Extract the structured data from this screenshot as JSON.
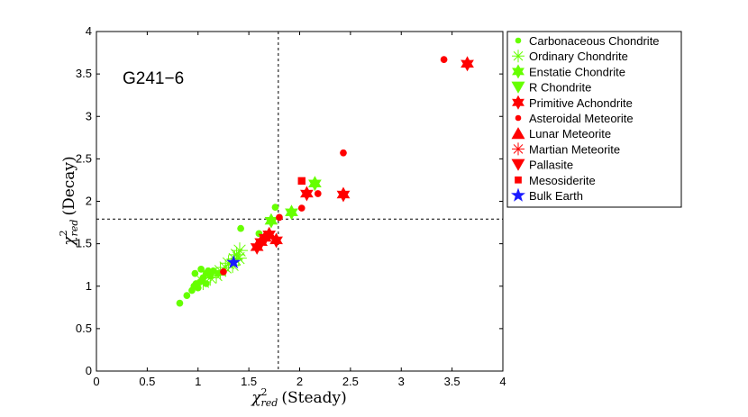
{
  "chart_data": {
    "type": "scatter",
    "title": "G241−6",
    "xlabel": {
      "base": "χ",
      "sup": "2",
      "sub": "red",
      "rest": "(Steady)"
    },
    "ylabel": {
      "base": "χ",
      "sup": "2",
      "sub": "red",
      "rest": "(Decay)"
    },
    "xlim": [
      0,
      4
    ],
    "ylim": [
      0,
      4
    ],
    "x_ticks": [
      0,
      0.5,
      1,
      1.5,
      2,
      2.5,
      3,
      3.5,
      4
    ],
    "y_ticks": [
      0,
      0.5,
      1,
      1.5,
      2,
      2.5,
      3,
      3.5,
      4
    ],
    "x_tick_labels": [
      "0",
      "0.5",
      "1",
      "1.5",
      "2",
      "2.5",
      "3",
      "3.5",
      "4"
    ],
    "y_tick_labels": [
      "0",
      "0.5",
      "1",
      "1.5",
      "2",
      "2.5",
      "3",
      "3.5",
      "4"
    ],
    "reference_lines": {
      "vertical_x": 1.79,
      "horizontal_y": 1.79
    },
    "colors": {
      "green": "#66ff00",
      "red": "#ff0000",
      "blue": "#1a1aff"
    },
    "legend_position": "outside-right",
    "series": [
      {
        "name": "Carbonaceous Chondrite",
        "marker": "dot",
        "color": "#66ff00",
        "points": [
          [
            0.82,
            0.8
          ],
          [
            0.89,
            0.89
          ],
          [
            0.94,
            0.95
          ],
          [
            0.96,
            1.0
          ],
          [
            0.98,
            1.03
          ],
          [
            1.0,
            0.98
          ],
          [
            1.02,
            1.05
          ],
          [
            1.05,
            1.1
          ],
          [
            1.08,
            1.15
          ],
          [
            1.1,
            1.18
          ],
          [
            0.97,
            1.15
          ],
          [
            1.03,
            1.2
          ],
          [
            1.12,
            1.12
          ],
          [
            1.15,
            1.18
          ],
          [
            1.2,
            1.15
          ],
          [
            1.08,
            1.03
          ],
          [
            1.42,
            1.68
          ],
          [
            1.6,
            1.62
          ],
          [
            1.76,
            1.93
          ]
        ]
      },
      {
        "name": "Ordinary Chondrite",
        "marker": "asterisk",
        "color": "#66ff00",
        "points": [
          [
            1.05,
            1.05
          ],
          [
            1.12,
            1.1
          ],
          [
            1.18,
            1.13
          ],
          [
            1.22,
            1.18
          ],
          [
            1.27,
            1.22
          ],
          [
            1.3,
            1.27
          ],
          [
            1.36,
            1.32
          ],
          [
            1.38,
            1.37
          ],
          [
            1.41,
            1.42
          ],
          [
            1.34,
            1.25
          ],
          [
            1.4,
            1.33
          ]
        ]
      },
      {
        "name": "Enstatie Chondrite",
        "marker": "hexagram",
        "color": "#66ff00",
        "points": [
          [
            1.72,
            1.77
          ],
          [
            1.92,
            1.87
          ],
          [
            2.15,
            2.21
          ]
        ]
      },
      {
        "name": "R Chondrite",
        "marker": "triangle-down",
        "color": "#66ff00",
        "points": []
      },
      {
        "name": "Primitive Achondrite",
        "marker": "hexagram",
        "color": "#ff0000",
        "points": [
          [
            1.58,
            1.46
          ],
          [
            1.62,
            1.52
          ],
          [
            1.66,
            1.57
          ],
          [
            1.7,
            1.61
          ],
          [
            1.77,
            1.54
          ],
          [
            2.07,
            2.09
          ],
          [
            2.43,
            2.08
          ],
          [
            3.65,
            3.62
          ]
        ]
      },
      {
        "name": "Asteroidal Meteorite",
        "marker": "dot",
        "color": "#ff0000",
        "points": [
          [
            1.25,
            1.17
          ],
          [
            1.8,
            1.81
          ],
          [
            2.02,
            1.92
          ],
          [
            2.18,
            2.09
          ],
          [
            2.43,
            2.57
          ],
          [
            3.42,
            3.67
          ]
        ]
      },
      {
        "name": "Lunar Meteorite",
        "marker": "triangle-up",
        "color": "#ff0000",
        "points": []
      },
      {
        "name": "Martian Meteorite",
        "marker": "asterisk",
        "color": "#ff0000",
        "points": []
      },
      {
        "name": "Pallasite",
        "marker": "triangle-down",
        "color": "#ff0000",
        "points": []
      },
      {
        "name": "Mesosiderite",
        "marker": "square",
        "color": "#ff0000",
        "points": [
          [
            2.02,
            2.24
          ]
        ]
      },
      {
        "name": "Bulk Earth",
        "marker": "pentagram",
        "color": "#1a1aff",
        "points": [
          [
            1.35,
            1.28
          ]
        ]
      }
    ]
  }
}
